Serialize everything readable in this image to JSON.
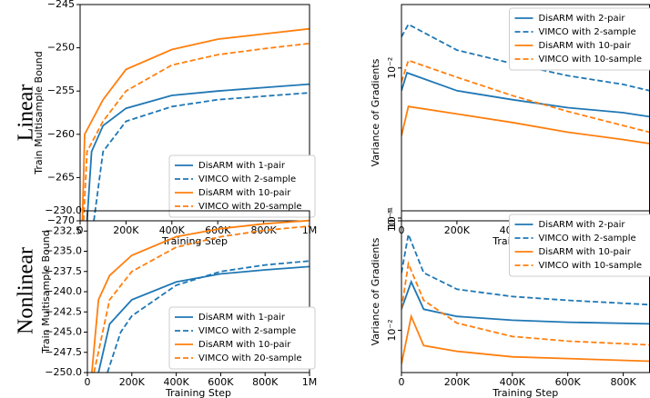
{
  "row_labels": [
    "Linear",
    "Nonlinear"
  ],
  "chart_data": [
    {
      "type": "line",
      "xlabel": "Training Step",
      "ylabel": "Train Multisample Bound",
      "xlim": [
        0,
        1000000
      ],
      "xticks": [
        0,
        {
          "value": 200000,
          "label": "200K"
        },
        {
          "value": 400000,
          "label": "400K"
        },
        {
          "value": 600000,
          "label": "600K"
        },
        {
          "value": 800000,
          "label": "800K"
        },
        {
          "value": 1000000,
          "label": "1M"
        }
      ],
      "ylim": [
        -270,
        -245
      ],
      "yticks": [
        {
          "value": -270,
          "label": "−270"
        },
        {
          "value": -265,
          "label": "−265"
        },
        {
          "value": -260,
          "label": "−260"
        },
        {
          "value": -255,
          "label": "−255"
        },
        {
          "value": -250,
          "label": "−250"
        },
        {
          "value": -245,
          "label": "−245"
        }
      ],
      "log_y": false,
      "legend": "lower right",
      "series": [
        {
          "name": "DisARM with 1-pair",
          "color": "#1f77b4",
          "style": "solid",
          "x": [
            30000,
            50000,
            100000,
            200000,
            400000,
            600000,
            800000,
            1000000
          ],
          "values": [
            -270,
            -262,
            -259,
            -257,
            -255.5,
            -255,
            -254.6,
            -254.2
          ]
        },
        {
          "name": "VIMCO with 2-sample",
          "color": "#1f77b4",
          "style": "dashed",
          "x": [
            60000,
            100000,
            200000,
            400000,
            600000,
            800000,
            1000000
          ],
          "values": [
            -270,
            -262,
            -258.5,
            -256.8,
            -256,
            -255.6,
            -255.2
          ]
        },
        {
          "name": "DisARM with 10-pair",
          "color": "#ff7f0e",
          "style": "solid",
          "x": [
            10000,
            20000,
            50000,
            100000,
            200000,
            400000,
            600000,
            800000,
            1000000
          ],
          "values": [
            -270,
            -260,
            -258.5,
            -256,
            -252.5,
            -250.2,
            -249,
            -248.4,
            -247.8
          ]
        },
        {
          "name": "VIMCO with 20-sample",
          "color": "#ff7f0e",
          "style": "dashed",
          "x": [
            15000,
            30000,
            100000,
            200000,
            400000,
            600000,
            800000,
            1000000
          ],
          "values": [
            -270,
            -262,
            -258.5,
            -255,
            -252,
            -250.8,
            -250.1,
            -249.5
          ]
        }
      ]
    },
    {
      "type": "line",
      "xlabel": "Training Step",
      "ylabel": "Variance of Gradients",
      "xlim": [
        0,
        895000
      ],
      "xticks": [
        0,
        {
          "value": 200000,
          "label": "200K"
        },
        {
          "value": 400000,
          "label": "400K"
        },
        {
          "value": 600000,
          "label": "600K"
        },
        {
          "value": 800000,
          "label": "800K"
        }
      ],
      "ylim": [
        0.001,
        0.026
      ],
      "yticks": [
        {
          "value": 0.001,
          "label": "10⁻³"
        },
        {
          "value": 0.01,
          "label": "10⁻²"
        }
      ],
      "log_y": true,
      "legend": "upper right",
      "series": [
        {
          "name": "DisARM with 2-pair",
          "color": "#1f77b4",
          "style": "solid",
          "x": [
            0,
            20000,
            200000,
            400000,
            600000,
            800000,
            895000
          ],
          "values": [
            0.0071,
            0.0093,
            0.0071,
            0.0062,
            0.0055,
            0.0051,
            0.0048
          ]
        },
        {
          "name": "VIMCO with 2-sample",
          "color": "#1f77b4",
          "style": "dashed",
          "x": [
            0,
            25000,
            200000,
            400000,
            600000,
            800000,
            895000
          ],
          "values": [
            0.016,
            0.0193,
            0.0131,
            0.0107,
            0.0089,
            0.0078,
            0.0071
          ]
        },
        {
          "name": "DisARM with 10-pair",
          "color": "#ff7f0e",
          "style": "solid",
          "x": [
            0,
            25000,
            200000,
            400000,
            600000,
            800000,
            895000
          ],
          "values": [
            0.0036,
            0.0056,
            0.005,
            0.0044,
            0.0038,
            0.0034,
            0.0032
          ]
        },
        {
          "name": "VIMCO with 10-sample",
          "color": "#ff7f0e",
          "style": "dashed",
          "x": [
            0,
            25000,
            200000,
            400000,
            600000,
            800000,
            895000
          ],
          "values": [
            0.0081,
            0.0112,
            0.0087,
            0.0066,
            0.0052,
            0.0042,
            0.0038
          ]
        }
      ]
    },
    {
      "type": "line",
      "xlabel": "Training Step",
      "ylabel": "Train Multisample Bound",
      "xlim": [
        0,
        1000000
      ],
      "xticks": [
        0,
        {
          "value": 200000,
          "label": "200K"
        },
        {
          "value": 400000,
          "label": "400K"
        },
        {
          "value": 600000,
          "label": "600K"
        },
        {
          "value": 800000,
          "label": "800K"
        },
        {
          "value": 1000000,
          "label": "1M"
        }
      ],
      "ylim": [
        -250,
        -230
      ],
      "yticks": [
        {
          "value": -250,
          "label": "−250.0"
        },
        {
          "value": -247.5,
          "label": "−247.5"
        },
        {
          "value": -245,
          "label": "−245.0"
        },
        {
          "value": -242.5,
          "label": "−242.5"
        },
        {
          "value": -240,
          "label": "−240.0"
        },
        {
          "value": -237.5,
          "label": "−237.5"
        },
        {
          "value": -235,
          "label": "−235.0"
        },
        {
          "value": -232.5,
          "label": "−232.5"
        },
        {
          "value": -230,
          "label": "−230.0"
        }
      ],
      "log_y": false,
      "legend": "lower right",
      "series": [
        {
          "name": "DisARM with 1-pair",
          "color": "#1f77b4",
          "style": "solid",
          "x": [
            50000,
            100000,
            200000,
            400000,
            600000,
            800000,
            1000000
          ],
          "values": [
            -250,
            -244,
            -241,
            -238.8,
            -237.8,
            -237.3,
            -236.9
          ]
        },
        {
          "name": "VIMCO with 2-sample",
          "color": "#1f77b4",
          "style": "dashed",
          "x": [
            90000,
            150000,
            200000,
            400000,
            600000,
            800000,
            1000000
          ],
          "values": [
            -250,
            -245,
            -243,
            -239.2,
            -237.5,
            -236.7,
            -236.2
          ]
        },
        {
          "name": "DisARM with 10-pair",
          "color": "#ff7f0e",
          "style": "solid",
          "x": [
            20000,
            50000,
            100000,
            200000,
            400000,
            600000,
            800000,
            1000000
          ],
          "values": [
            -250,
            -241,
            -238,
            -235.5,
            -233.2,
            -232.2,
            -231.6,
            -231.2
          ]
        },
        {
          "name": "VIMCO with 20-sample",
          "color": "#ff7f0e",
          "style": "dashed",
          "x": [
            30000,
            100000,
            200000,
            400000,
            600000,
            800000,
            1000000
          ],
          "values": [
            -250,
            -241,
            -237.5,
            -234.5,
            -233.2,
            -232.4,
            -231.9
          ]
        }
      ]
    },
    {
      "type": "line",
      "xlabel": "Training Step",
      "ylabel": "Variance of Gradients",
      "xlim": [
        0,
        895000
      ],
      "xticks": [
        0,
        {
          "value": 200000,
          "label": "200K"
        },
        {
          "value": 400000,
          "label": "400K"
        },
        {
          "value": 600000,
          "label": "600K"
        },
        {
          "value": 800000,
          "label": "800K"
        }
      ],
      "ylim": [
        0.0042,
        0.116
      ],
      "yticks": [
        {
          "value": 0.01,
          "label": "10⁻²"
        },
        {
          "value": 0.1,
          "label": "10⁻¹"
        }
      ],
      "log_y": true,
      "legend": "upper right",
      "series": [
        {
          "name": "DisARM with 2-pair",
          "color": "#1f77b4",
          "style": "solid",
          "x": [
            0,
            35000,
            80000,
            200000,
            400000,
            600000,
            895000
          ],
          "values": [
            0.0154,
            0.027,
            0.0154,
            0.0133,
            0.0123,
            0.0118,
            0.0114
          ]
        },
        {
          "name": "VIMCO with 2-sample",
          "color": "#1f77b4",
          "style": "dashed",
          "x": [
            0,
            25000,
            80000,
            200000,
            400000,
            600000,
            895000
          ],
          "values": [
            0.0325,
            0.0714,
            0.0325,
            0.0232,
            0.02,
            0.0185,
            0.0169
          ]
        },
        {
          "name": "DisARM with 10-pair",
          "color": "#ff7f0e",
          "style": "solid",
          "x": [
            0,
            35000,
            80000,
            200000,
            400000,
            600000,
            895000
          ],
          "values": [
            0.005,
            0.0133,
            0.0073,
            0.0065,
            0.0058,
            0.0056,
            0.0053
          ]
        },
        {
          "name": "VIMCO with 10-sample",
          "color": "#ff7f0e",
          "style": "dashed",
          "x": [
            0,
            25000,
            80000,
            200000,
            400000,
            600000,
            895000
          ],
          "values": [
            0.0154,
            0.0392,
            0.0185,
            0.0116,
            0.0088,
            0.008,
            0.0074
          ]
        }
      ]
    }
  ]
}
